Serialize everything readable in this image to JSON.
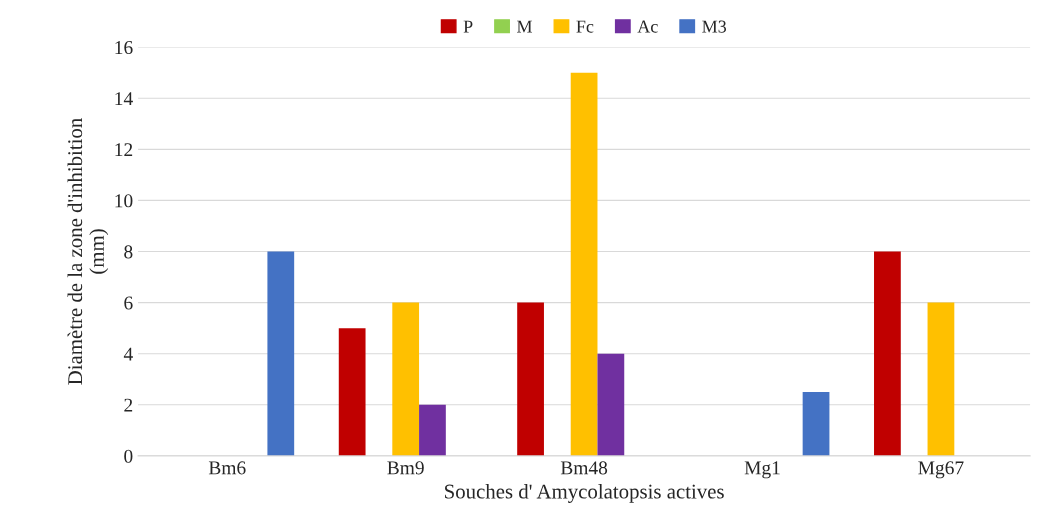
{
  "chart_data": {
    "type": "bar",
    "xlabel": "Souches d' Amycolatopsis actives",
    "ylabel": "Diamètre de la zone d'inhibition\n(mm)",
    "categories": [
      "Bm6",
      "Bm9",
      "Bm48",
      "Mg1",
      "Mg67"
    ],
    "series": [
      {
        "name": "P",
        "color": "#c00000",
        "values": [
          0,
          5,
          6,
          0,
          8
        ]
      },
      {
        "name": "M",
        "color": "#92d050",
        "values": [
          0,
          0,
          0,
          0,
          0
        ]
      },
      {
        "name": "Fc",
        "color": "#ffc000",
        "values": [
          0,
          6,
          15,
          0,
          6
        ]
      },
      {
        "name": "Ac",
        "color": "#7030a0",
        "values": [
          0,
          2,
          4,
          0,
          0
        ]
      },
      {
        "name": "M3",
        "color": "#4472c4",
        "values": [
          8,
          0,
          0,
          2.5,
          0
        ]
      }
    ],
    "ylim": [
      0,
      16
    ],
    "yticks": [
      0,
      2,
      4,
      6,
      8,
      10,
      12,
      14,
      16
    ],
    "grid": "y",
    "legend": "top"
  }
}
